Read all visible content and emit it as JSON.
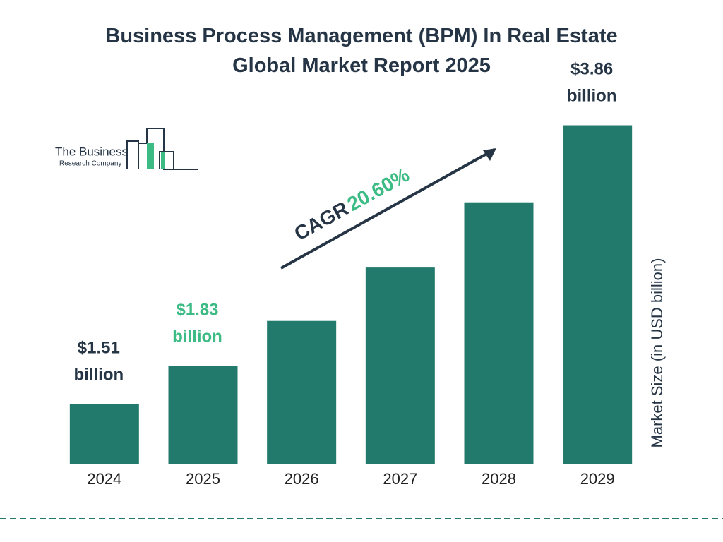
{
  "chart_data": {
    "type": "bar",
    "title": "Business Process Management (BPM) In Real Estate Global Market Report 2025",
    "categories": [
      "2024",
      "2025",
      "2026",
      "2027",
      "2028",
      "2029"
    ],
    "values": [
      1.51,
      1.83,
      2.21,
      2.66,
      3.21,
      3.86
    ],
    "value_labels": [
      "$1.51 billion",
      "$1.83 billion",
      null,
      null,
      null,
      "$3.86 billion"
    ],
    "value_label_colors": [
      "#263545",
      "#3dbb84",
      null,
      null,
      null,
      "#263545"
    ],
    "color": "#217a6b",
    "ylim": [
      1,
      4
    ],
    "y_label": "Market Size (in USD billion)",
    "annotation": {
      "label": "CAGR",
      "value": "20.60%"
    },
    "logo": {
      "line1": "The Business",
      "line2": "Research Company"
    }
  }
}
